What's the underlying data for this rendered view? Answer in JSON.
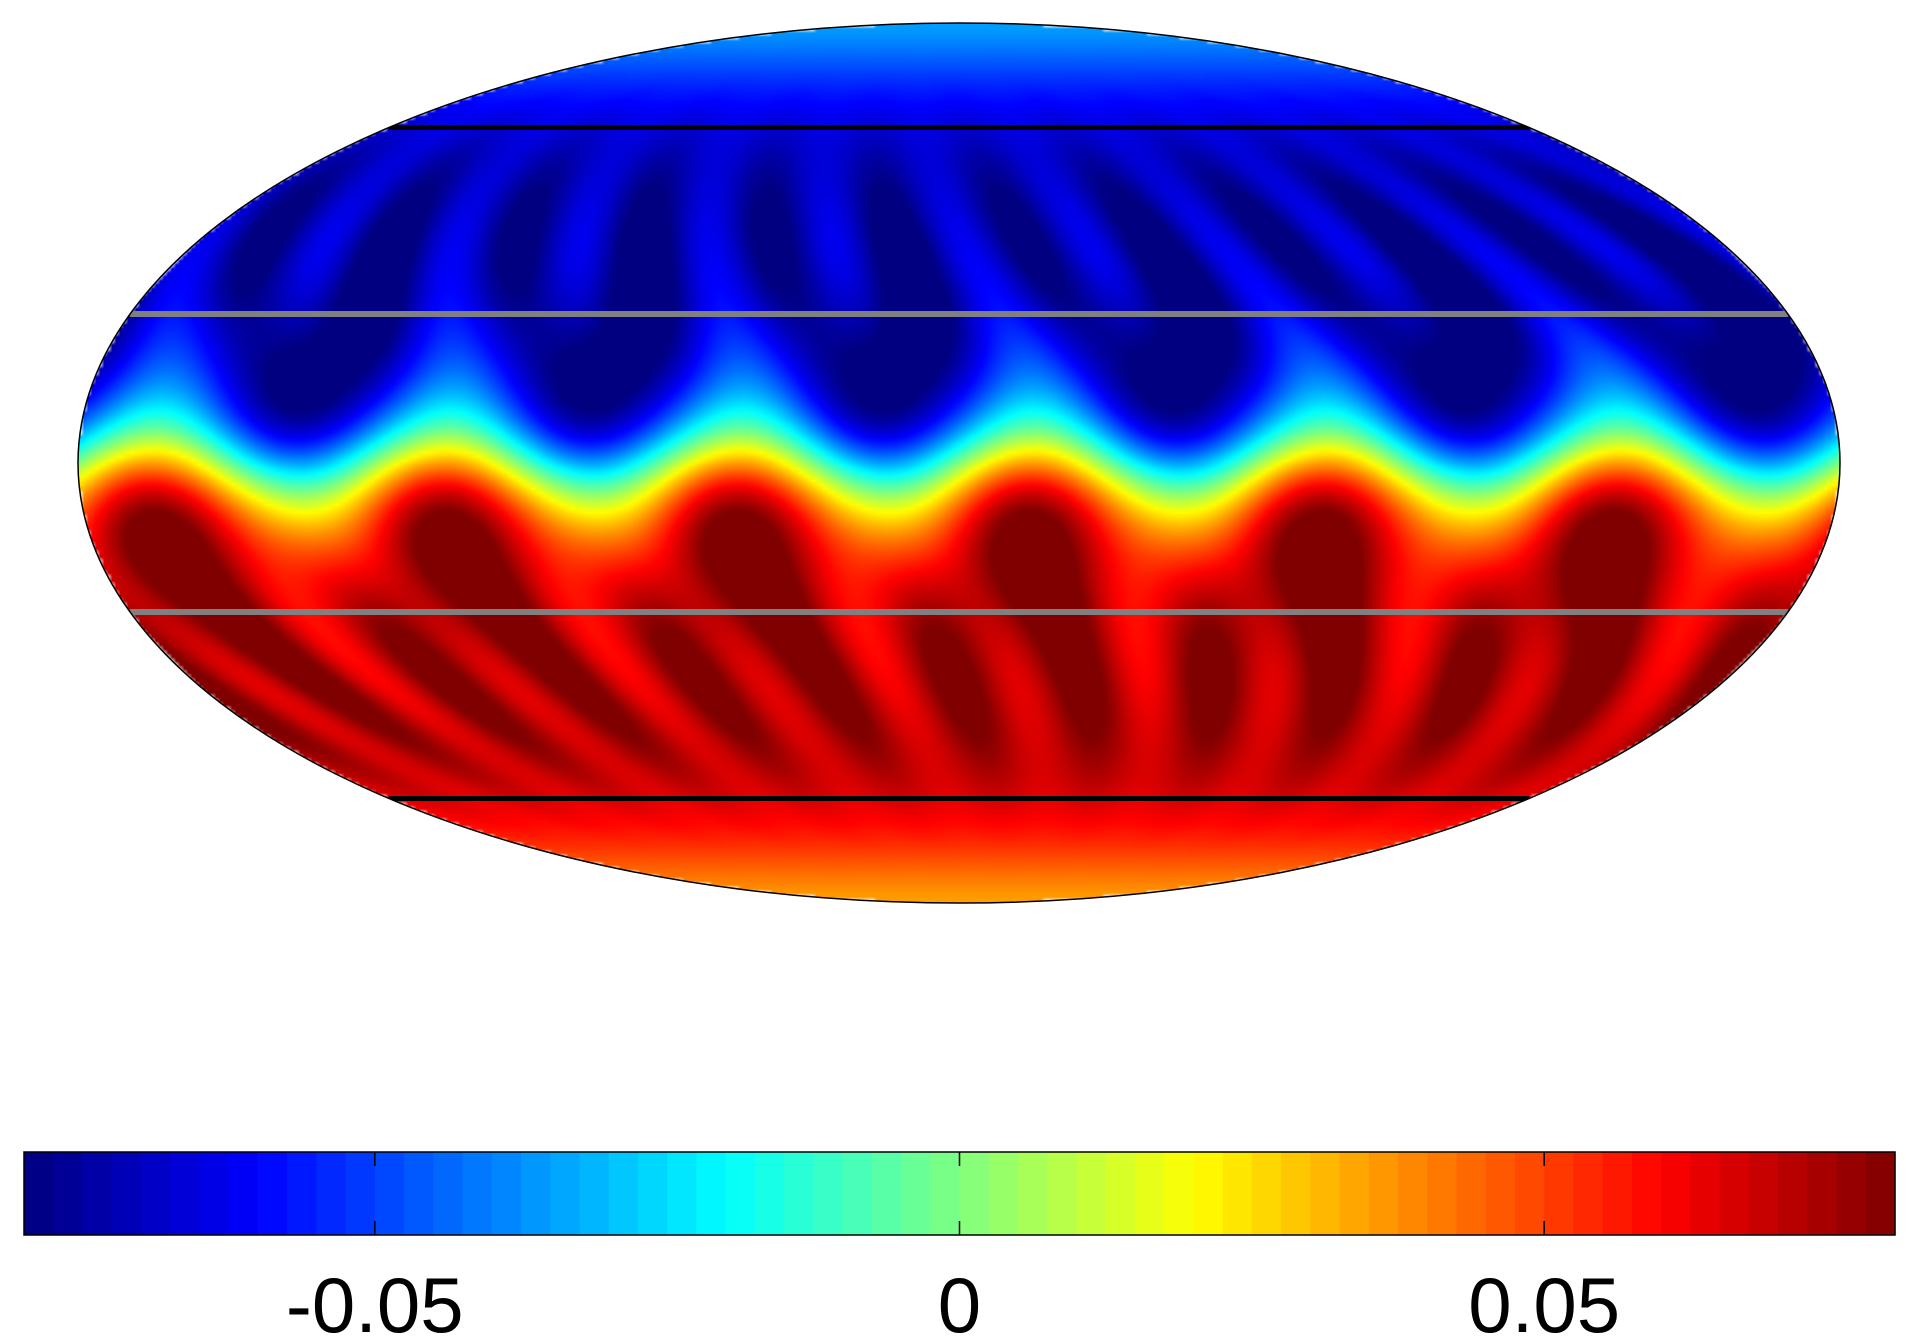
{
  "chart_data": {
    "type": "heatmap",
    "projection": "mollweide",
    "title": "",
    "xlabel": "",
    "ylabel": "",
    "colormap": "jet",
    "color_range": [
      -0.08,
      0.08
    ],
    "colorbar": {
      "orientation": "horizontal",
      "placement": "bottom",
      "ticks": [
        -0.05,
        0,
        0.05
      ],
      "tick_labels": [
        "-0.05",
        "0",
        "0.05"
      ]
    },
    "field_description_values": {
      "north_polar_mean": -0.035,
      "south_polar_mean": 0.035,
      "north_band_min": -0.07,
      "south_band_max": 0.075,
      "azimuthal_modes": 6
    },
    "overlay_lines": [
      {
        "kind": "latitude-circle",
        "latitude_deg": 60,
        "color": "#000000"
      },
      {
        "kind": "latitude-circle",
        "latitude_deg": -60,
        "color": "#000000"
      },
      {
        "kind": "latitude-circle",
        "latitude_deg": 25,
        "color": "#808080"
      },
      {
        "kind": "latitude-circle",
        "latitude_deg": -25,
        "color": "#808080"
      }
    ]
  }
}
